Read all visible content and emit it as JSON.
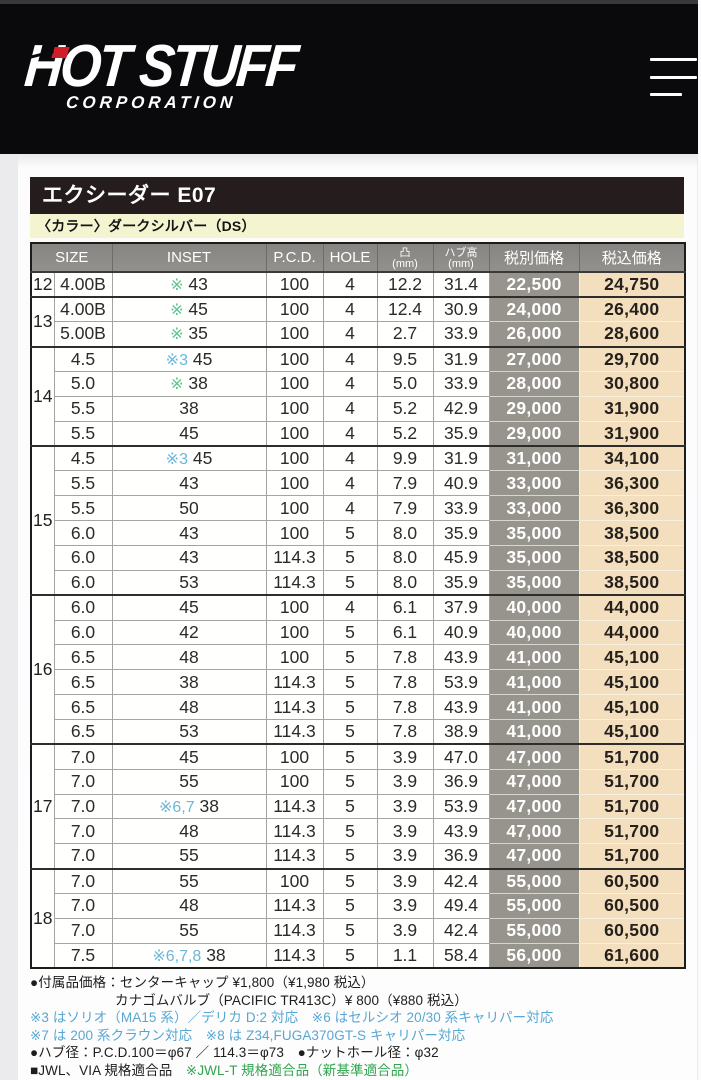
{
  "brand": {
    "logo_text": "HOT STUFF",
    "logo_subtext": "CORPORATION",
    "logo_accent_color": "#cd2127",
    "banner_color": "#0a090b"
  },
  "menu": {
    "icon": "hamburger-icon"
  },
  "product": {
    "title": "エクシーダー E07",
    "color_label": "〈カラー〉ダークシルバー（DS）"
  },
  "table": {
    "headers": {
      "size": "SIZE",
      "inset": "INSET",
      "pcd": "P.C.D.",
      "hole": "HOLE",
      "protrusion_line1": "凸",
      "protrusion_line2": "(mm)",
      "hub_line1": "ハブ高",
      "hub_line2": "(mm)",
      "price_ex_tax": "税別価格",
      "price_inc_tax": "税込価格"
    },
    "note_colors": {
      "green": "#5fc38d",
      "blue": "#6cb6dc"
    },
    "price_ex_bg": "#96948c",
    "price_inc_bg": "#f3debd",
    "groups": [
      {
        "size": "12",
        "rows": [
          {
            "width": "4.00B",
            "inset_note": "※",
            "inset_note_color": "green",
            "inset": "43",
            "pcd": "100",
            "hole": "4",
            "protrusion": "12.2",
            "hub": "31.4",
            "price_ex": "22,500",
            "price_inc": "24,750"
          }
        ]
      },
      {
        "size": "13",
        "rows": [
          {
            "width": "4.00B",
            "inset_note": "※",
            "inset_note_color": "green",
            "inset": "45",
            "pcd": "100",
            "hole": "4",
            "protrusion": "12.4",
            "hub": "30.9",
            "price_ex": "24,000",
            "price_inc": "26,400"
          },
          {
            "width": "5.00B",
            "inset_note": "※",
            "inset_note_color": "green",
            "inset": "35",
            "pcd": "100",
            "hole": "4",
            "protrusion": "2.7",
            "hub": "33.9",
            "price_ex": "26,000",
            "price_inc": "28,600"
          }
        ]
      },
      {
        "size": "14",
        "rows": [
          {
            "width": "4.5",
            "inset_note": "※3",
            "inset_note_color": "blue",
            "inset": "45",
            "pcd": "100",
            "hole": "4",
            "protrusion": "9.5",
            "hub": "31.9",
            "price_ex": "27,000",
            "price_inc": "29,700"
          },
          {
            "width": "5.0",
            "inset_note": "※",
            "inset_note_color": "green",
            "inset": "38",
            "pcd": "100",
            "hole": "4",
            "protrusion": "5.0",
            "hub": "33.9",
            "price_ex": "28,000",
            "price_inc": "30,800"
          },
          {
            "width": "5.5",
            "inset_note": "",
            "inset_note_color": "",
            "inset": "38",
            "pcd": "100",
            "hole": "4",
            "protrusion": "5.2",
            "hub": "42.9",
            "price_ex": "29,000",
            "price_inc": "31,900"
          },
          {
            "width": "5.5",
            "inset_note": "",
            "inset_note_color": "",
            "inset": "45",
            "pcd": "100",
            "hole": "4",
            "protrusion": "5.2",
            "hub": "35.9",
            "price_ex": "29,000",
            "price_inc": "31,900"
          }
        ]
      },
      {
        "size": "15",
        "rows": [
          {
            "width": "4.5",
            "inset_note": "※3",
            "inset_note_color": "blue",
            "inset": "45",
            "pcd": "100",
            "hole": "4",
            "protrusion": "9.9",
            "hub": "31.9",
            "price_ex": "31,000",
            "price_inc": "34,100"
          },
          {
            "width": "5.5",
            "inset_note": "",
            "inset_note_color": "",
            "inset": "43",
            "pcd": "100",
            "hole": "4",
            "protrusion": "7.9",
            "hub": "40.9",
            "price_ex": "33,000",
            "price_inc": "36,300"
          },
          {
            "width": "5.5",
            "inset_note": "",
            "inset_note_color": "",
            "inset": "50",
            "pcd": "100",
            "hole": "4",
            "protrusion": "7.9",
            "hub": "33.9",
            "price_ex": "33,000",
            "price_inc": "36,300"
          },
          {
            "width": "6.0",
            "inset_note": "",
            "inset_note_color": "",
            "inset": "43",
            "pcd": "100",
            "hole": "5",
            "protrusion": "8.0",
            "hub": "35.9",
            "price_ex": "35,000",
            "price_inc": "38,500"
          },
          {
            "width": "6.0",
            "inset_note": "",
            "inset_note_color": "",
            "inset": "43",
            "pcd": "114.3",
            "hole": "5",
            "protrusion": "8.0",
            "hub": "45.9",
            "price_ex": "35,000",
            "price_inc": "38,500"
          },
          {
            "width": "6.0",
            "inset_note": "",
            "inset_note_color": "",
            "inset": "53",
            "pcd": "114.3",
            "hole": "5",
            "protrusion": "8.0",
            "hub": "35.9",
            "price_ex": "35,000",
            "price_inc": "38,500"
          }
        ]
      },
      {
        "size": "16",
        "rows": [
          {
            "width": "6.0",
            "inset_note": "",
            "inset_note_color": "",
            "inset": "45",
            "pcd": "100",
            "hole": "4",
            "protrusion": "6.1",
            "hub": "37.9",
            "price_ex": "40,000",
            "price_inc": "44,000"
          },
          {
            "width": "6.0",
            "inset_note": "",
            "inset_note_color": "",
            "inset": "42",
            "pcd": "100",
            "hole": "5",
            "protrusion": "6.1",
            "hub": "40.9",
            "price_ex": "40,000",
            "price_inc": "44,000"
          },
          {
            "width": "6.5",
            "inset_note": "",
            "inset_note_color": "",
            "inset": "48",
            "pcd": "100",
            "hole": "5",
            "protrusion": "7.8",
            "hub": "43.9",
            "price_ex": "41,000",
            "price_inc": "45,100"
          },
          {
            "width": "6.5",
            "inset_note": "",
            "inset_note_color": "",
            "inset": "38",
            "pcd": "114.3",
            "hole": "5",
            "protrusion": "7.8",
            "hub": "53.9",
            "price_ex": "41,000",
            "price_inc": "45,100"
          },
          {
            "width": "6.5",
            "inset_note": "",
            "inset_note_color": "",
            "inset": "48",
            "pcd": "114.3",
            "hole": "5",
            "protrusion": "7.8",
            "hub": "43.9",
            "price_ex": "41,000",
            "price_inc": "45,100"
          },
          {
            "width": "6.5",
            "inset_note": "",
            "inset_note_color": "",
            "inset": "53",
            "pcd": "114.3",
            "hole": "5",
            "protrusion": "7.8",
            "hub": "38.9",
            "price_ex": "41,000",
            "price_inc": "45,100"
          }
        ]
      },
      {
        "size": "17",
        "rows": [
          {
            "width": "7.0",
            "inset_note": "",
            "inset_note_color": "",
            "inset": "45",
            "pcd": "100",
            "hole": "5",
            "protrusion": "3.9",
            "hub": "47.0",
            "price_ex": "47,000",
            "price_inc": "51,700"
          },
          {
            "width": "7.0",
            "inset_note": "",
            "inset_note_color": "",
            "inset": "55",
            "pcd": "100",
            "hole": "5",
            "protrusion": "3.9",
            "hub": "36.9",
            "price_ex": "47,000",
            "price_inc": "51,700"
          },
          {
            "width": "7.0",
            "inset_note": "※6,7",
            "inset_note_color": "blue",
            "inset": "38",
            "pcd": "114.3",
            "hole": "5",
            "protrusion": "3.9",
            "hub": "53.9",
            "price_ex": "47,000",
            "price_inc": "51,700"
          },
          {
            "width": "7.0",
            "inset_note": "",
            "inset_note_color": "",
            "inset": "48",
            "pcd": "114.3",
            "hole": "5",
            "protrusion": "3.9",
            "hub": "43.9",
            "price_ex": "47,000",
            "price_inc": "51,700"
          },
          {
            "width": "7.0",
            "inset_note": "",
            "inset_note_color": "",
            "inset": "55",
            "pcd": "114.3",
            "hole": "5",
            "protrusion": "3.9",
            "hub": "36.9",
            "price_ex": "47,000",
            "price_inc": "51,700"
          }
        ]
      },
      {
        "size": "18",
        "rows": [
          {
            "width": "7.0",
            "inset_note": "",
            "inset_note_color": "",
            "inset": "55",
            "pcd": "100",
            "hole": "5",
            "protrusion": "3.9",
            "hub": "42.4",
            "price_ex": "55,000",
            "price_inc": "60,500"
          },
          {
            "width": "7.0",
            "inset_note": "",
            "inset_note_color": "",
            "inset": "48",
            "pcd": "114.3",
            "hole": "5",
            "protrusion": "3.9",
            "hub": "49.4",
            "price_ex": "55,000",
            "price_inc": "60,500"
          },
          {
            "width": "7.0",
            "inset_note": "",
            "inset_note_color": "",
            "inset": "55",
            "pcd": "114.3",
            "hole": "5",
            "protrusion": "3.9",
            "hub": "42.4",
            "price_ex": "55,000",
            "price_inc": "60,500"
          },
          {
            "width": "7.5",
            "inset_note": "※6,7,8",
            "inset_note_color": "blue",
            "inset": "38",
            "pcd": "114.3",
            "hole": "5",
            "protrusion": "1.1",
            "hub": "58.4",
            "price_ex": "56,000",
            "price_inc": "61,600"
          }
        ]
      }
    ]
  },
  "notes": [
    {
      "indent": false,
      "parts": [
        {
          "text": "●付属品価格：センターキャップ ¥1,800（¥1,980 税込）",
          "color": ""
        }
      ]
    },
    {
      "indent": true,
      "parts": [
        {
          "text": "カナゴムバルブ（PACIFIC TR413C）¥ 800（¥880 税込）",
          "color": ""
        }
      ]
    },
    {
      "indent": false,
      "parts": [
        {
          "text": "※3 はソリオ（MA15 系）／デリカ D:2 対応　※6 はセルシオ 20/30 系キャリパー対応",
          "color": "blue"
        }
      ]
    },
    {
      "indent": false,
      "parts": [
        {
          "text": "※7 は 200 系クラウン対応　※8 は Z34,FUGA370GT-S キャリパー対応",
          "color": "blue"
        }
      ]
    },
    {
      "indent": false,
      "parts": [
        {
          "text": "●ハブ径：P.C.D.100＝φ67 ／ 114.3＝φ73　●ナットホール径：φ32",
          "color": ""
        }
      ]
    },
    {
      "indent": false,
      "parts": [
        {
          "text": "■JWL、VIA 規格適合品　",
          "color": ""
        },
        {
          "text": "※JWL-T 規格適合品（新基準適合品）",
          "color": "green"
        }
      ]
    }
  ]
}
